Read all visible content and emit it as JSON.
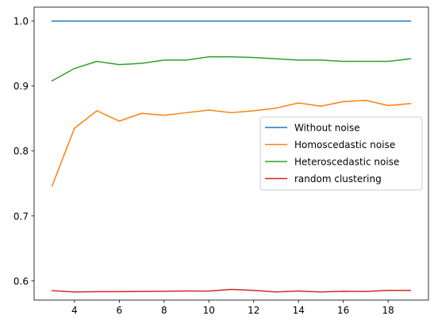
{
  "chart_data": {
    "type": "line",
    "title": "",
    "xlabel": "",
    "ylabel": "",
    "x": [
      3,
      4,
      5,
      6,
      7,
      8,
      9,
      10,
      11,
      12,
      13,
      14,
      15,
      16,
      17,
      18,
      19
    ],
    "xlim": [
      2.2,
      19.8
    ],
    "ylim": [
      0.5705,
      1.0215
    ],
    "xticks": [
      4,
      6,
      8,
      10,
      12,
      14,
      16,
      18
    ],
    "xtick_labels": [
      "4",
      "6",
      "8",
      "10",
      "12",
      "14",
      "16",
      "18"
    ],
    "yticks": [
      0.6,
      0.7,
      0.8,
      0.9,
      1.0
    ],
    "ytick_labels": [
      "0.6",
      "0.7",
      "0.8",
      "0.9",
      "1.0"
    ],
    "grid": false,
    "legend_position": "center-right",
    "series": [
      {
        "name": "Without noise",
        "color": "#1f77b4",
        "values": [
          1.0,
          1.0,
          1.0,
          1.0,
          1.0,
          1.0,
          1.0,
          1.0,
          1.0,
          1.0,
          1.0,
          1.0,
          1.0,
          1.0,
          1.0,
          1.0,
          1.0
        ]
      },
      {
        "name": "Homoscedastic noise",
        "color": "#ff7f0e",
        "values": [
          0.746,
          0.835,
          0.862,
          0.846,
          0.858,
          0.855,
          0.859,
          0.863,
          0.859,
          0.862,
          0.866,
          0.874,
          0.869,
          0.876,
          0.878,
          0.87,
          0.873
        ]
      },
      {
        "name": "Heteroscedastic noise",
        "color": "#2ca02c",
        "values": [
          0.908,
          0.927,
          0.938,
          0.933,
          0.935,
          0.94,
          0.94,
          0.945,
          0.945,
          0.944,
          0.942,
          0.94,
          0.94,
          0.938,
          0.938,
          0.938,
          0.942
        ]
      },
      {
        "name": "random clustering",
        "color": "#d62728",
        "values": [
          0.585,
          0.583,
          0.5835,
          0.5835,
          0.5837,
          0.584,
          0.5845,
          0.5843,
          0.587,
          0.5855,
          0.583,
          0.5845,
          0.583,
          0.584,
          0.5838,
          0.5855,
          0.5853
        ]
      }
    ]
  }
}
